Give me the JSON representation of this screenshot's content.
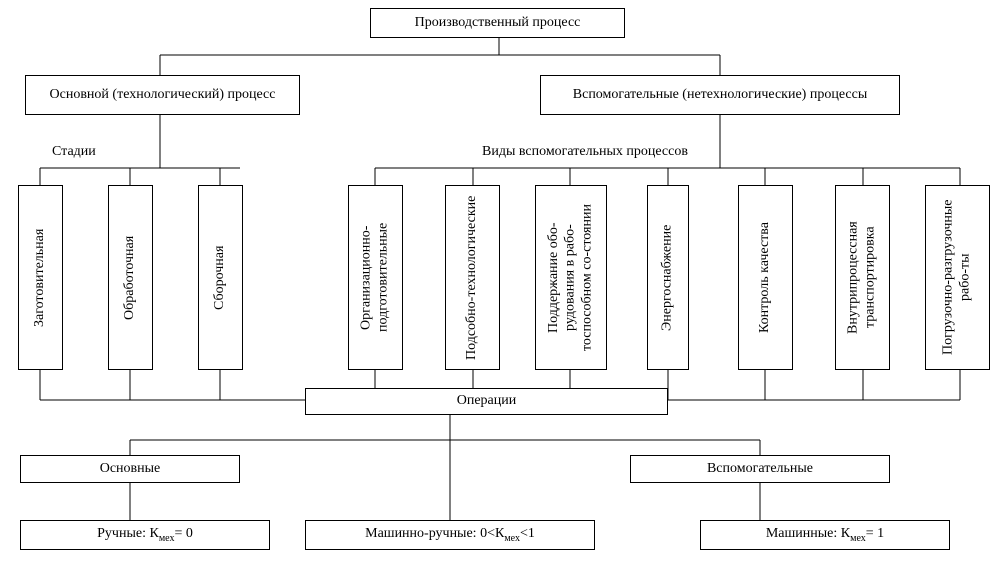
{
  "type": "tree",
  "background_color": "#ffffff",
  "border_color": "#000000",
  "text_color": "#000000",
  "font_family": "Times New Roman",
  "font_size": 14,
  "root": {
    "label": "Производственный процесс"
  },
  "level2": {
    "left": {
      "label": "Основной (технологический) процесс"
    },
    "right": {
      "label": "Вспомогательные (нетехнологические) процессы"
    }
  },
  "left_group_label": "Стадии",
  "right_group_label": "Виды вспомогательных процессов",
  "stages": [
    {
      "label": "Заготовительная"
    },
    {
      "label": "Обработочная"
    },
    {
      "label": "Сборочная"
    }
  ],
  "aux_types": [
    {
      "label": "Организационно-подготовительные"
    },
    {
      "label": "Подсобно-технологические"
    },
    {
      "label": "Поддержание обо-рудования в рабо-тоспособном со-стоянии"
    },
    {
      "label": "Энергоснабжение"
    },
    {
      "label": "Контроль качества"
    },
    {
      "label": "Внутрипроцессная транспортировка"
    },
    {
      "label": "Погрузочно-разгрузочные рабо-ты"
    }
  ],
  "operations_label": "Операции",
  "operation_groups": {
    "left": {
      "label": "Основные"
    },
    "right": {
      "label": "Вспомогательные"
    }
  },
  "operation_types": [
    {
      "label_html": "Ручные: К<sub>мех</sub>= 0"
    },
    {
      "label_html": "Машинно-ручные: 0&lt;К<sub>мех</sub>&lt;1"
    },
    {
      "label_html": "Машинные: К<sub>мех</sub>= 1"
    }
  ]
}
